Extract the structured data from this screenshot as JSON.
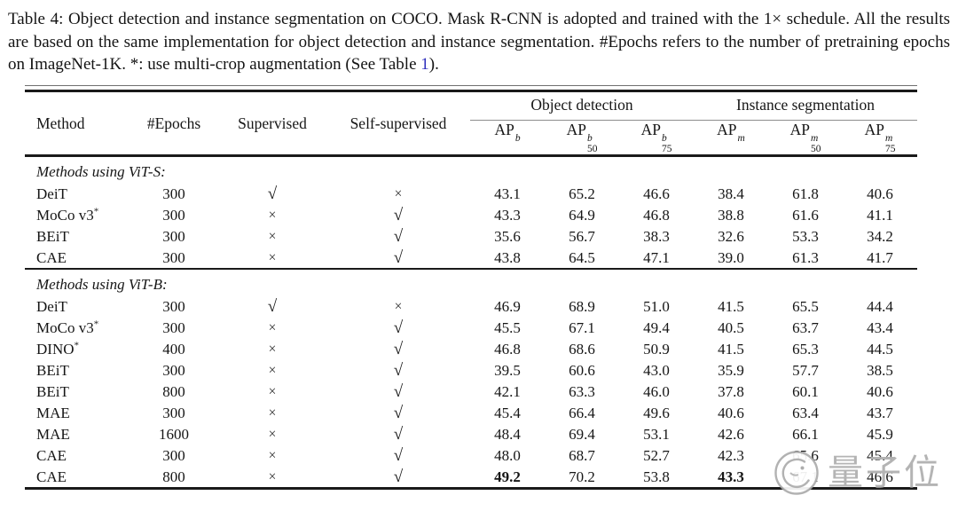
{
  "caption": {
    "text": "Table 4: Object detection and instance segmentation on COCO. Mask R-CNN is adopted and trained with the 1× schedule. All the results are based on the same implementation for object detection and instance segmentation. #Epochs refers to the number of pretraining epochs on ImageNet-1K. *: use multi-crop augmentation (See Table ",
    "link_text": "1",
    "text_after": ").",
    "link_color": "#2e2ebc"
  },
  "table": {
    "columns": {
      "method": "Method",
      "epochs": "#Epochs",
      "supervised": "Supervised",
      "self_supervised": "Self-supervised",
      "object_detection": "Object detection",
      "instance_segmentation": "Instance segmentation",
      "ap_cols": [
        {
          "base": "AP",
          "sup": "b",
          "sub": ""
        },
        {
          "base": "AP",
          "sup": "b",
          "sub": "50"
        },
        {
          "base": "AP",
          "sup": "b",
          "sub": "75"
        },
        {
          "base": "AP",
          "sup": "m",
          "sub": ""
        },
        {
          "base": "AP",
          "sup": "m",
          "sub": "50"
        },
        {
          "base": "AP",
          "sup": "m",
          "sub": "75"
        }
      ]
    },
    "sections": [
      {
        "label": "Methods using ViT-S:",
        "rows": [
          {
            "method": "DeiT",
            "method_sup": "",
            "epochs": "300",
            "supervised": "√",
            "self_supervised": "×",
            "values": [
              "43.1",
              "65.2",
              "46.6",
              "38.4",
              "61.8",
              "40.6"
            ],
            "bold": []
          },
          {
            "method": "MoCo v3",
            "method_sup": "*",
            "epochs": "300",
            "supervised": "×",
            "self_supervised": "√",
            "values": [
              "43.3",
              "64.9",
              "46.8",
              "38.8",
              "61.6",
              "41.1"
            ],
            "bold": []
          },
          {
            "method": "BEiT",
            "method_sup": "",
            "epochs": "300",
            "supervised": "×",
            "self_supervised": "√",
            "values": [
              "35.6",
              "56.7",
              "38.3",
              "32.6",
              "53.3",
              "34.2"
            ],
            "bold": []
          },
          {
            "method": "CAE",
            "method_sup": "",
            "epochs": "300",
            "supervised": "×",
            "self_supervised": "√",
            "values": [
              "43.8",
              "64.5",
              "47.1",
              "39.0",
              "61.3",
              "41.7"
            ],
            "bold": []
          }
        ]
      },
      {
        "label": "Methods using ViT-B:",
        "rows": [
          {
            "method": "DeiT",
            "method_sup": "",
            "epochs": "300",
            "supervised": "√",
            "self_supervised": "×",
            "values": [
              "46.9",
              "68.9",
              "51.0",
              "41.5",
              "65.5",
              "44.4"
            ],
            "bold": []
          },
          {
            "method": "MoCo v3",
            "method_sup": "*",
            "epochs": "300",
            "supervised": "×",
            "self_supervised": "√",
            "values": [
              "45.5",
              "67.1",
              "49.4",
              "40.5",
              "63.7",
              "43.4"
            ],
            "bold": []
          },
          {
            "method": "DINO",
            "method_sup": "*",
            "epochs": "400",
            "supervised": "×",
            "self_supervised": "√",
            "values": [
              "46.8",
              "68.6",
              "50.9",
              "41.5",
              "65.3",
              "44.5"
            ],
            "bold": []
          },
          {
            "method": "BEiT",
            "method_sup": "",
            "epochs": "300",
            "supervised": "×",
            "self_supervised": "√",
            "values": [
              "39.5",
              "60.6",
              "43.0",
              "35.9",
              "57.7",
              "38.5"
            ],
            "bold": []
          },
          {
            "method": "BEiT",
            "method_sup": "",
            "epochs": "800",
            "supervised": "×",
            "self_supervised": "√",
            "values": [
              "42.1",
              "63.3",
              "46.0",
              "37.8",
              "60.1",
              "40.6"
            ],
            "bold": []
          },
          {
            "method": "MAE",
            "method_sup": "",
            "epochs": "300",
            "supervised": "×",
            "self_supervised": "√",
            "values": [
              "45.4",
              "66.4",
              "49.6",
              "40.6",
              "63.4",
              "43.7"
            ],
            "bold": []
          },
          {
            "method": "MAE",
            "method_sup": "",
            "epochs": "1600",
            "supervised": "×",
            "self_supervised": "√",
            "values": [
              "48.4",
              "69.4",
              "53.1",
              "42.6",
              "66.1",
              "45.9"
            ],
            "bold": []
          },
          {
            "method": "CAE",
            "method_sup": "",
            "epochs": "300",
            "supervised": "×",
            "self_supervised": "√",
            "values": [
              "48.0",
              "68.7",
              "52.7",
              "42.3",
              "65.6",
              "45.4"
            ],
            "bold": []
          },
          {
            "method": "CAE",
            "method_sup": "",
            "epochs": "800",
            "supervised": "×",
            "self_supervised": "√",
            "values": [
              "49.2",
              "70.2",
              "53.8",
              "43.3",
              "67.1",
              "46.6"
            ],
            "bold": [
              0,
              3
            ]
          }
        ]
      }
    ]
  },
  "watermark": {
    "text": "量子位",
    "color": "#a8a8a8"
  }
}
